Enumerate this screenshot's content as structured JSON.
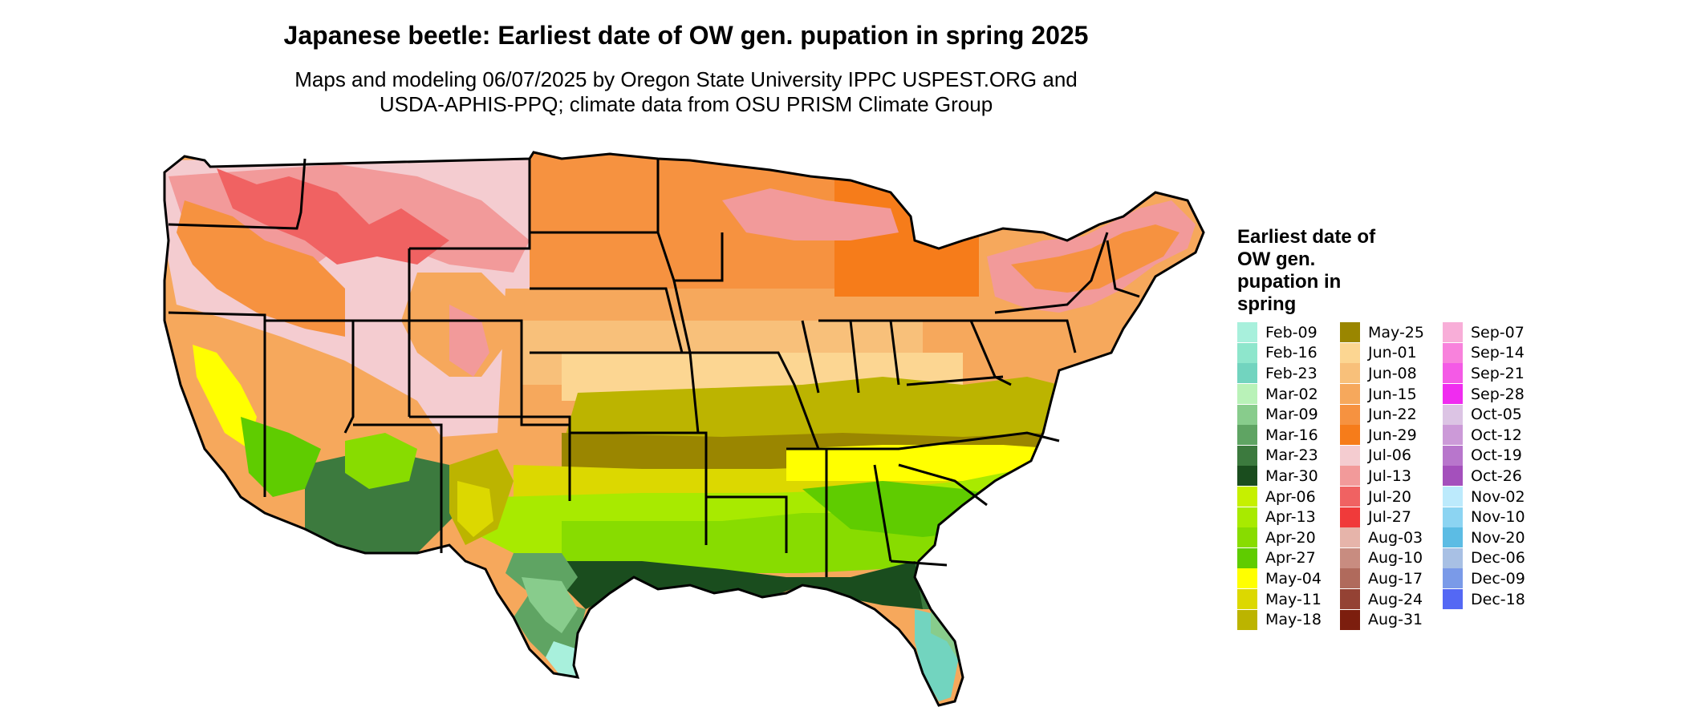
{
  "title": "Japanese beetle: Earliest date of OW gen. pupation in spring 2025",
  "subtitle_line1": "Maps and modeling 06/07/2025 by Oregon State University IPPC USPEST.ORG and",
  "subtitle_line2": "USDA-APHIS-PPQ; climate data from OSU PRISM Climate Group",
  "legend": {
    "title": "Earliest date of OW gen. pupation in spring",
    "columns": [
      [
        {
          "label": "Feb-09",
          "color": "#a8f0dc"
        },
        {
          "label": "Feb-16",
          "color": "#8ee6cc"
        },
        {
          "label": "Feb-23",
          "color": "#72d4bf"
        },
        {
          "label": "Mar-02",
          "color": "#b9f2b8"
        },
        {
          "label": "Mar-09",
          "color": "#88cc8c"
        },
        {
          "label": "Mar-16",
          "color": "#5fa463"
        },
        {
          "label": "Mar-23",
          "color": "#3c7a3e"
        },
        {
          "label": "Mar-30",
          "color": "#1a4d1e"
        },
        {
          "label": "Apr-06",
          "color": "#c6f000"
        },
        {
          "label": "Apr-13",
          "color": "#a8ea00"
        },
        {
          "label": "Apr-20",
          "color": "#88dc00"
        },
        {
          "label": "Apr-27",
          "color": "#5fcc00"
        },
        {
          "label": "May-04",
          "color": "#ffff00"
        },
        {
          "label": "May-11",
          "color": "#dcd800"
        },
        {
          "label": "May-18",
          "color": "#bcb400"
        }
      ],
      [
        {
          "label": "May-25",
          "color": "#9a8600"
        },
        {
          "label": "Jun-01",
          "color": "#fcd692"
        },
        {
          "label": "Jun-08",
          "color": "#f8c07a"
        },
        {
          "label": "Jun-15",
          "color": "#f6a85c"
        },
        {
          "label": "Jun-22",
          "color": "#f69240"
        },
        {
          "label": "Jun-29",
          "color": "#f67c1a"
        },
        {
          "label": "Jul-06",
          "color": "#f4ccd0"
        },
        {
          "label": "Jul-13",
          "color": "#f29a9a"
        },
        {
          "label": "Jul-20",
          "color": "#f06262"
        },
        {
          "label": "Jul-27",
          "color": "#f03a3a"
        },
        {
          "label": "Aug-03",
          "color": "#e6b4aa"
        },
        {
          "label": "Aug-10",
          "color": "#c88c80"
        },
        {
          "label": "Aug-17",
          "color": "#b06a5c"
        },
        {
          "label": "Aug-24",
          "color": "#944234"
        },
        {
          "label": "Aug-31",
          "color": "#7c1e0e"
        }
      ],
      [
        {
          "label": "Sep-07",
          "color": "#f8aed8"
        },
        {
          "label": "Sep-14",
          "color": "#f882dc"
        },
        {
          "label": "Sep-21",
          "color": "#f45ae6"
        },
        {
          "label": "Sep-28",
          "color": "#f02cf0"
        },
        {
          "label": "Oct-05",
          "color": "#dcc4e4"
        },
        {
          "label": "Oct-12",
          "color": "#cc9ad8"
        },
        {
          "label": "Oct-19",
          "color": "#b876cc"
        },
        {
          "label": "Oct-26",
          "color": "#a450bc"
        },
        {
          "label": "Nov-02",
          "color": "#bceafc"
        },
        {
          "label": "Nov-10",
          "color": "#8cd4f2"
        },
        {
          "label": "Nov-20",
          "color": "#5cbce4"
        },
        {
          "label": "Dec-06",
          "color": "#a8c0e4"
        },
        {
          "label": "Dec-09",
          "color": "#7a9ae8"
        },
        {
          "label": "Dec-18",
          "color": "#5468f4"
        }
      ]
    ]
  }
}
